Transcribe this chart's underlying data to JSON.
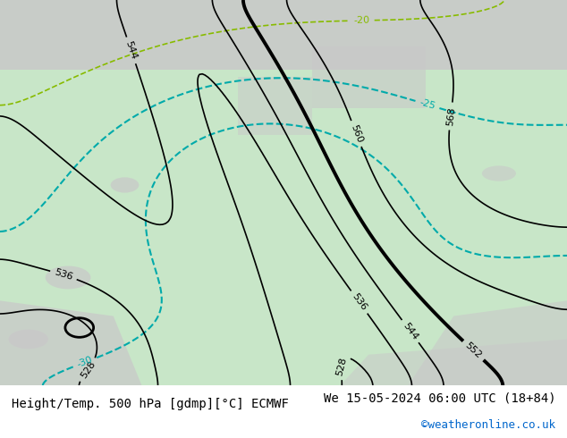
{
  "title_left": "Height/Temp. 500 hPa [gdmp][°C] ECMWF",
  "title_right": "We 15-05-2024 06:00 UTC (18+84)",
  "credit": "©weatheronline.co.uk",
  "bg_map_color": "#c8e6c8",
  "bg_sea_color": "#d8d8d8",
  "bg_land_color": "#c8e6c8",
  "title_font_size": 10,
  "credit_color": "#0066cc",
  "fig_width": 6.34,
  "fig_height": 4.9,
  "dpi": 100
}
